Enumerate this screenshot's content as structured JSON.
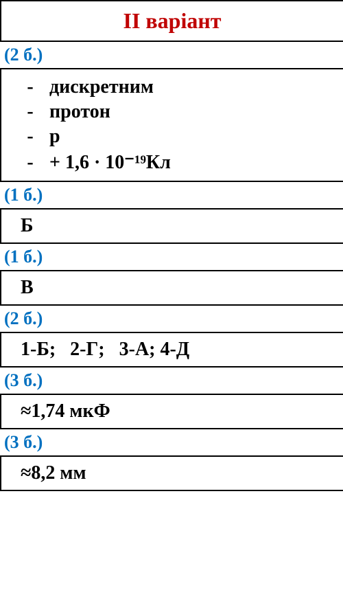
{
  "header": {
    "title": "II варіант",
    "color": "#c00000"
  },
  "points_color": "#0070c0",
  "sections": [
    {
      "points": "(2 б.)",
      "type": "bullets",
      "items": [
        "дискретним",
        "протон",
        "p",
        "+ 1,6 · 10⁻¹⁹Кл"
      ]
    },
    {
      "points": "(1 б.)",
      "type": "single",
      "text": "Б"
    },
    {
      "points": "(1 б.)",
      "type": "single",
      "text": "В"
    },
    {
      "points": "(2 б.)",
      "type": "single",
      "text": "1-Б;   2-Г;   3-А; 4-Д"
    },
    {
      "points": "(3 б.)",
      "type": "single",
      "text": "≈1,74 мкФ"
    },
    {
      "points": "(3 б.)",
      "type": "single",
      "text": "≈8,2 мм"
    }
  ]
}
